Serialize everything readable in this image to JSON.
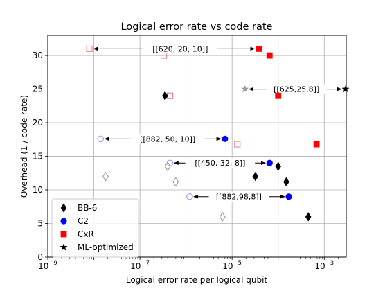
{
  "chart_data": {
    "type": "scatter",
    "title": "Logical error rate vs code rate",
    "xlabel": "Logical error rate per logical qubit",
    "ylabel": "Overhead (1 / code rate)",
    "xscale": "log",
    "xlim": [
      1e-09,
      0.003
    ],
    "ylim": [
      0,
      33
    ],
    "grid": true,
    "x_ticks": [
      {
        "value": 1e-09,
        "mantissa": "10",
        "exp": "−9"
      },
      {
        "value": 1e-07,
        "mantissa": "10",
        "exp": "−7"
      },
      {
        "value": 1e-05,
        "mantissa": "10",
        "exp": "−5"
      },
      {
        "value": 0.001,
        "mantissa": "10",
        "exp": "−3"
      }
    ],
    "y_ticks": [
      0,
      5,
      10,
      15,
      20,
      25,
      30
    ],
    "legend_position": "lower-left",
    "series": [
      {
        "name": "BB-6",
        "marker": "diamond",
        "color": "#000000",
        "points": [
          {
            "x": 3.5e-07,
            "y": 24.0
          },
          {
            "x": 3.2e-05,
            "y": 12.0
          },
          {
            "x": 0.0001,
            "y": 13.5
          },
          {
            "x": 0.00015,
            "y": 11.2
          },
          {
            "x": 0.00045,
            "y": 6.0
          }
        ]
      },
      {
        "name": "C2",
        "marker": "circle",
        "color": "#0000ff",
        "points": [
          {
            "x": 7e-06,
            "y": 17.6
          },
          {
            "x": 6.5e-05,
            "y": 14.0
          },
          {
            "x": 0.00017,
            "y": 9.0
          }
        ]
      },
      {
        "name": "CxR",
        "marker": "square",
        "color": "#ff0000",
        "points": [
          {
            "x": 3.8e-05,
            "y": 31.0
          },
          {
            "x": 6.5e-05,
            "y": 30.0
          },
          {
            "x": 0.0001,
            "y": 24.0
          },
          {
            "x": 0.00068,
            "y": 16.8
          }
        ]
      },
      {
        "name": "ML-optimized",
        "marker": "star",
        "color": "#000000",
        "points": [
          {
            "x": 0.0029,
            "y": 25.0
          }
        ]
      }
    ],
    "reference_points": [
      {
        "marker": "diamond",
        "color": "#999999",
        "x": 1.8e-08,
        "y": 12.0
      },
      {
        "marker": "diamond",
        "color": "#999999",
        "x": 4e-07,
        "y": 13.5
      },
      {
        "marker": "diamond",
        "color": "#999999",
        "x": 6e-07,
        "y": 11.2
      },
      {
        "marker": "diamond",
        "color": "#999999",
        "x": 6.2e-06,
        "y": 6.0
      },
      {
        "marker": "circle",
        "color": "#9999ff",
        "x": 1.4e-08,
        "y": 17.6
      },
      {
        "marker": "circle",
        "color": "#9999ff",
        "x": 4.5e-07,
        "y": 14.0
      },
      {
        "marker": "circle",
        "color": "#9999ff",
        "x": 1.2e-06,
        "y": 9.0
      },
      {
        "marker": "square",
        "color": "#f08080",
        "x": 8e-09,
        "y": 31.0
      },
      {
        "marker": "square",
        "color": "#f08080",
        "x": 3.3e-07,
        "y": 30.0
      },
      {
        "marker": "square",
        "color": "#f08080",
        "x": 4.5e-07,
        "y": 24.0
      },
      {
        "marker": "square",
        "color": "#f08080",
        "x": 1.3e-05,
        "y": 16.8
      },
      {
        "marker": "star",
        "color": "#999999",
        "x": 1.9e-05,
        "y": 25.0
      }
    ],
    "annotations": [
      {
        "text": "[[620, 20, 10]]",
        "x_from": 8e-09,
        "x_to": 3.8e-05,
        "y": 31.0,
        "label_x": 7.5e-07
      },
      {
        "text": "[[625,25,8]]",
        "x_from": 1.9e-05,
        "x_to": 0.0029,
        "y": 25.0,
        "label_x": 0.00025
      },
      {
        "text": "[[882, 50, 10]]",
        "x_from": 1.4e-08,
        "x_to": 7e-06,
        "y": 17.6,
        "label_x": 4e-07
      },
      {
        "text": "[[450, 32, 8]]",
        "x_from": 4.5e-07,
        "x_to": 6.5e-05,
        "y": 14.0,
        "label_x": 5.5e-06
      },
      {
        "text": "[[882,98,8]]",
        "x_from": 1.2e-06,
        "x_to": 0.00017,
        "y": 9.0,
        "label_x": 1.4e-05
      }
    ]
  }
}
